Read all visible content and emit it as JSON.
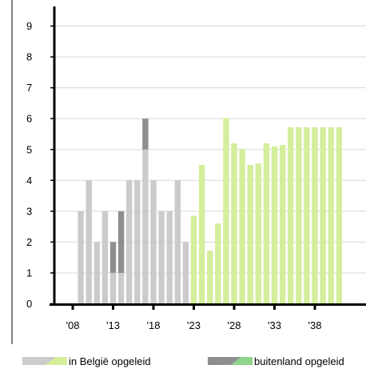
{
  "chart_data": {
    "type": "bar",
    "stacked": true,
    "title": "",
    "xlabel": "",
    "ylabel": "",
    "ylim": [
      0,
      9.5
    ],
    "grid": true,
    "legend_position": "bottom",
    "yticks": [
      "0",
      "1",
      "2",
      "3",
      "4",
      "5",
      "6",
      "7",
      "8",
      "9"
    ],
    "xticks": [
      {
        "year": 2008,
        "label": "'08"
      },
      {
        "year": 2013,
        "label": "'13"
      },
      {
        "year": 2018,
        "label": "'18"
      },
      {
        "year": 2023,
        "label": "'23"
      },
      {
        "year": 2028,
        "label": "'28"
      },
      {
        "year": 2033,
        "label": "'33"
      },
      {
        "year": 2038,
        "label": "'38"
      }
    ],
    "years": [
      2009,
      2010,
      2011,
      2012,
      2013,
      2014,
      2015,
      2016,
      2017,
      2018,
      2019,
      2020,
      2021,
      2022,
      2023,
      2024,
      2025,
      2026,
      2027,
      2028,
      2029,
      2030,
      2031,
      2032,
      2033,
      2034,
      2035,
      2036,
      2037,
      2038,
      2039,
      2040,
      2041
    ],
    "series": [
      {
        "name": "in België opgeleid",
        "values": [
          3,
          4,
          2,
          3,
          1,
          1,
          4,
          4,
          5,
          4,
          3,
          3,
          4,
          2,
          2.85,
          4.5,
          1.72,
          2.6,
          6.02,
          5.2,
          5.02,
          4.5,
          4.55,
          5.2,
          5.1,
          5.15,
          5.72,
          5.72,
          5.72,
          5.72,
          5.72,
          5.72,
          5.72
        ]
      },
      {
        "name": "buitenland opgeleid",
        "values": [
          0,
          0,
          0,
          0,
          1,
          2,
          0,
          0,
          1,
          0,
          0,
          0,
          0,
          0,
          0,
          0,
          0,
          0,
          0,
          0,
          0,
          0,
          0,
          0,
          0,
          0,
          0,
          0,
          0,
          0,
          0,
          0,
          0
        ]
      }
    ],
    "colors": {
      "belgium_past": "#cccbcb",
      "belgium_future": "#d4ee9c",
      "abroad_past": "#8e8e8e",
      "abroad_future": "#8fd48a",
      "axis": "#000000",
      "grid": "#d9d9d9"
    },
    "projection_start_year": 2023
  }
}
